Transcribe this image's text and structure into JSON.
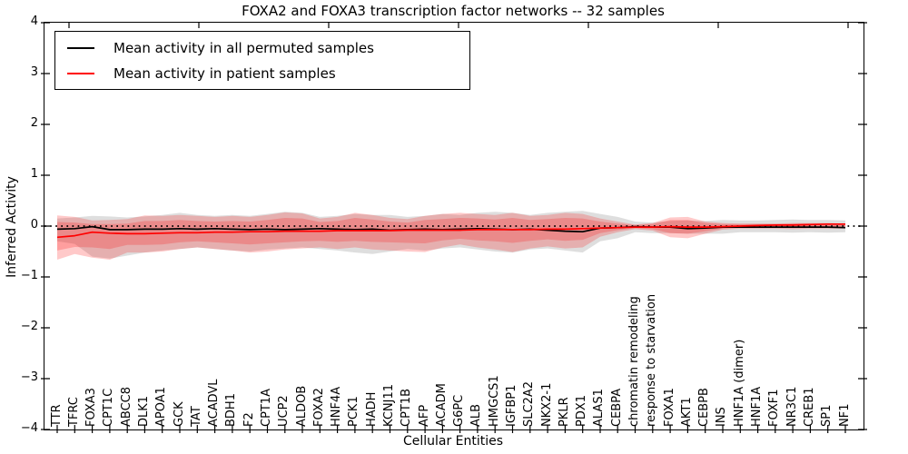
{
  "title": "FOXA2 and FOXA3 transcription factor networks -- 32 samples",
  "axes": {
    "ylabel": "Inferred Activity",
    "xlabel": "Cellular Entities",
    "ytick_labels": [
      "4",
      "3",
      "2",
      "1",
      "0",
      "−1",
      "−2",
      "−3",
      "−4"
    ]
  },
  "legend": {
    "items": [
      {
        "label": "Mean activity in all permuted samples",
        "color": "#000000"
      },
      {
        "label": "Mean activity in patient samples",
        "color": "#ff0000"
      }
    ]
  },
  "chart_data": {
    "type": "line",
    "title": "FOXA2 and FOXA3 transcription factor networks -- 32 samples",
    "xlabel": "Cellular Entities",
    "ylabel": "Inferred Activity",
    "ylim": [
      -4,
      4
    ],
    "yticks": [
      4,
      3,
      2,
      1,
      0,
      -1,
      -2,
      -3,
      -4
    ],
    "grid": false,
    "legend_position": "upper left",
    "zero_line": 0,
    "categories": [
      "TTR",
      "TFRC",
      "FOXA3",
      "CPT1C",
      "ABCC8",
      "DLK1",
      "APOA1",
      "GCK",
      "TAT",
      "ACADVL",
      "BDH1",
      "F2",
      "CPT1A",
      "UCP2",
      "ALDOB",
      "FOXA2",
      "HNF4A",
      "PCK1",
      "HADH",
      "KCNJ11",
      "CPT1B",
      "AFP",
      "ACADM",
      "G6PC",
      "ALB",
      "HMGCS1",
      "IGFBP1",
      "SLC2A2",
      "NKX2-1",
      "PKLR",
      "PDX1",
      "ALAS1",
      "CEBPA",
      "chromatin remodeling",
      "response to starvation",
      "FOXA1",
      "AKT1",
      "CEBPB",
      "INS",
      "HNF1A (dimer)",
      "HNF1A",
      "FOXF1",
      "NR3C1",
      "CREB1",
      "SP1",
      "NF1"
    ],
    "series": [
      {
        "name": "Mean activity in all permuted samples",
        "color": "#000000",
        "values": [
          -0.06,
          -0.05,
          -0.01,
          -0.07,
          -0.07,
          -0.06,
          -0.06,
          -0.05,
          -0.06,
          -0.05,
          -0.06,
          -0.07,
          -0.06,
          -0.07,
          -0.06,
          -0.05,
          -0.06,
          -0.07,
          -0.06,
          -0.08,
          -0.07,
          -0.06,
          -0.07,
          -0.06,
          -0.05,
          -0.06,
          -0.07,
          -0.06,
          -0.08,
          -0.1,
          -0.11,
          -0.04,
          -0.03,
          -0.01,
          -0.02,
          -0.02,
          -0.05,
          -0.04,
          -0.02,
          -0.02,
          -0.02,
          -0.02,
          -0.02,
          -0.02,
          -0.02,
          -0.03
        ]
      },
      {
        "name": "Mean activity in patient samples",
        "color": "#ff0000",
        "values": [
          -0.22,
          -0.19,
          -0.12,
          -0.14,
          -0.15,
          -0.15,
          -0.14,
          -0.13,
          -0.13,
          -0.12,
          -0.12,
          -0.11,
          -0.11,
          -0.1,
          -0.1,
          -0.1,
          -0.09,
          -0.09,
          -0.09,
          -0.09,
          -0.08,
          -0.08,
          -0.08,
          -0.08,
          -0.07,
          -0.07,
          -0.07,
          -0.07,
          -0.06,
          -0.06,
          -0.05,
          -0.04,
          -0.03,
          -0.02,
          -0.02,
          -0.01,
          -0.02,
          -0.02,
          -0.01,
          0.0,
          0.01,
          0.02,
          0.02,
          0.03,
          0.04,
          0.04
        ]
      }
    ],
    "bands": [
      {
        "name": "permuted-samples-range",
        "color": "rgba(0,0,0,0.13)",
        "upper": [
          0.15,
          0.17,
          0.2,
          0.19,
          0.17,
          0.19,
          0.22,
          0.26,
          0.22,
          0.2,
          0.22,
          0.2,
          0.24,
          0.28,
          0.26,
          0.18,
          0.2,
          0.24,
          0.22,
          0.22,
          0.18,
          0.2,
          0.24,
          0.22,
          0.26,
          0.28,
          0.26,
          0.22,
          0.26,
          0.28,
          0.3,
          0.24,
          0.18,
          0.09,
          0.07,
          0.1,
          0.11,
          0.1,
          0.12,
          0.11,
          0.11,
          0.12,
          0.13,
          0.12,
          0.12,
          0.11
        ],
        "lower": [
          -0.3,
          -0.35,
          -0.6,
          -0.64,
          -0.58,
          -0.52,
          -0.48,
          -0.45,
          -0.42,
          -0.45,
          -0.48,
          -0.5,
          -0.46,
          -0.44,
          -0.42,
          -0.45,
          -0.48,
          -0.52,
          -0.55,
          -0.5,
          -0.45,
          -0.48,
          -0.44,
          -0.42,
          -0.46,
          -0.5,
          -0.52,
          -0.46,
          -0.44,
          -0.48,
          -0.52,
          -0.3,
          -0.24,
          -0.12,
          -0.14,
          -0.14,
          -0.15,
          -0.15,
          -0.15,
          -0.12,
          -0.12,
          -0.12,
          -0.13,
          -0.12,
          -0.13,
          -0.12
        ]
      },
      {
        "name": "patient-samples-range-outer",
        "color": "rgba(255,0,0,0.21)",
        "upper": [
          0.21,
          0.18,
          0.11,
          0.12,
          0.14,
          0.21,
          0.2,
          0.22,
          0.2,
          0.18,
          0.2,
          0.18,
          0.22,
          0.27,
          0.25,
          0.15,
          0.18,
          0.26,
          0.22,
          0.16,
          0.14,
          0.2,
          0.24,
          0.26,
          0.24,
          0.22,
          0.26,
          0.2,
          0.22,
          0.26,
          0.24,
          0.15,
          0.09,
          0.03,
          0.06,
          0.17,
          0.18,
          0.09,
          0.06,
          0.05,
          0.05,
          0.05,
          0.06,
          0.06,
          0.06,
          0.05
        ],
        "lower": [
          -0.66,
          -0.55,
          -0.62,
          -0.66,
          -0.52,
          -0.52,
          -0.5,
          -0.45,
          -0.42,
          -0.45,
          -0.48,
          -0.52,
          -0.5,
          -0.46,
          -0.44,
          -0.42,
          -0.45,
          -0.42,
          -0.46,
          -0.48,
          -0.5,
          -0.51,
          -0.42,
          -0.36,
          -0.42,
          -0.46,
          -0.51,
          -0.44,
          -0.4,
          -0.44,
          -0.42,
          -0.21,
          -0.12,
          -0.06,
          -0.09,
          -0.22,
          -0.24,
          -0.15,
          -0.07,
          -0.05,
          -0.05,
          -0.05,
          -0.06,
          -0.05,
          -0.05,
          -0.05
        ]
      },
      {
        "name": "patient-samples-range-inner",
        "color": "rgba(255,0,0,0.21)",
        "upper": [
          0.08,
          0.07,
          0.04,
          0.04,
          0.05,
          0.1,
          0.1,
          0.12,
          0.1,
          0.09,
          0.1,
          0.09,
          0.12,
          0.16,
          0.15,
          0.08,
          0.1,
          0.16,
          0.13,
          0.09,
          0.07,
          0.12,
          0.14,
          0.16,
          0.15,
          0.13,
          0.16,
          0.12,
          0.14,
          0.16,
          0.15,
          0.09,
          0.05,
          0.02,
          0.04,
          0.12,
          0.12,
          0.06,
          0.04,
          0.04,
          0.04,
          0.04,
          0.05,
          0.05,
          0.05,
          0.05
        ],
        "lower": [
          -0.48,
          -0.41,
          -0.42,
          -0.45,
          -0.37,
          -0.37,
          -0.36,
          -0.32,
          -0.3,
          -0.32,
          -0.34,
          -0.36,
          -0.34,
          -0.32,
          -0.3,
          -0.29,
          -0.31,
          -0.29,
          -0.31,
          -0.32,
          -0.33,
          -0.34,
          -0.28,
          -0.25,
          -0.28,
          -0.3,
          -0.33,
          -0.29,
          -0.26,
          -0.29,
          -0.27,
          -0.14,
          -0.08,
          -0.04,
          -0.06,
          -0.14,
          -0.15,
          -0.1,
          -0.05,
          -0.03,
          -0.03,
          -0.02,
          -0.03,
          -0.02,
          -0.01,
          -0.01
        ]
      }
    ]
  }
}
